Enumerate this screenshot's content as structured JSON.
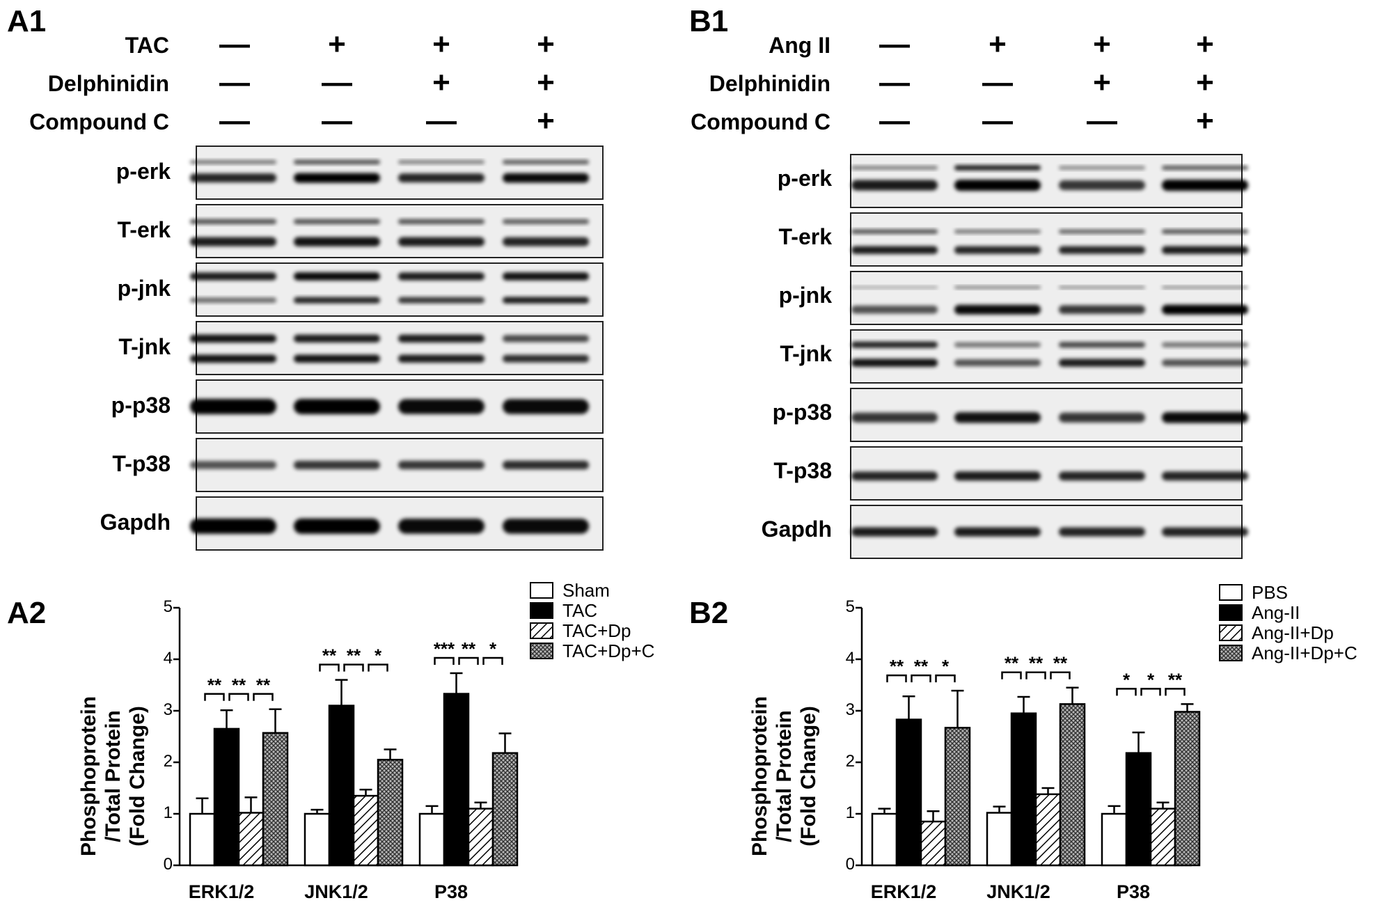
{
  "panels": {
    "A1": "A1",
    "A2": "A2",
    "B1": "B1",
    "B2": "B2"
  },
  "blot_A": {
    "conditions": [
      {
        "name": "TAC",
        "signs": [
          "—",
          "+",
          "+",
          "+"
        ]
      },
      {
        "name": "Delphinidin",
        "signs": [
          "—",
          "—",
          "+",
          "+"
        ]
      },
      {
        "name": "Compound C",
        "signs": [
          "—",
          "—",
          "—",
          "+"
        ]
      }
    ],
    "bands": [
      "p-erk",
      "T-erk",
      "p-jnk",
      "T-jnk",
      "p-p38",
      "T-p38",
      "Gapdh"
    ]
  },
  "blot_B": {
    "conditions": [
      {
        "name": "Ang II",
        "signs": [
          "—",
          "+",
          "+",
          "+"
        ]
      },
      {
        "name": "Delphinidin",
        "signs": [
          "—",
          "—",
          "+",
          "+"
        ]
      },
      {
        "name": "Compound C",
        "signs": [
          "—",
          "—",
          "—",
          "+"
        ]
      }
    ],
    "bands": [
      "p-erk",
      "T-erk",
      "p-jnk",
      "T-jnk",
      "p-p38",
      "T-p38",
      "Gapdh"
    ]
  },
  "chart_data": [
    {
      "type": "bar",
      "panel": "A2",
      "ylabel_lines": [
        "Phosphoprotein",
        "/Total Protein",
        "(Fold Change)"
      ],
      "ylim": [
        0,
        5
      ],
      "yticks": [
        "0",
        "1",
        "2",
        "3",
        "4",
        "5"
      ],
      "categories": [
        "ERK1/2",
        "JNK1/2",
        "P38"
      ],
      "series": [
        {
          "name": "Sham",
          "values": [
            1.0,
            1.0,
            1.0
          ],
          "errors": [
            0.3,
            0.08,
            0.15
          ]
        },
        {
          "name": "TAC",
          "values": [
            2.65,
            3.1,
            3.33
          ],
          "errors": [
            0.36,
            0.5,
            0.4
          ]
        },
        {
          "name": "TAC+Dp",
          "values": [
            1.02,
            1.35,
            1.1
          ],
          "errors": [
            0.3,
            0.12,
            0.12
          ]
        },
        {
          "name": "TAC+Dp+C",
          "values": [
            2.57,
            2.05,
            2.18
          ],
          "errors": [
            0.46,
            0.2,
            0.38
          ]
        }
      ],
      "significance": [
        [
          "**",
          "**",
          "**"
        ],
        [
          "**",
          "**",
          "*"
        ],
        [
          "***",
          "**",
          "*"
        ]
      ],
      "legend_position": "top-right",
      "grid": false
    },
    {
      "type": "bar",
      "panel": "B2",
      "ylabel_lines": [
        "Phosphoprotein",
        "/Total Protein",
        "(Fold Change)"
      ],
      "ylim": [
        0,
        5
      ],
      "yticks": [
        "0",
        "1",
        "2",
        "3",
        "4",
        "5"
      ],
      "categories": [
        "ERK1/2",
        "JNK1/2",
        "P38"
      ],
      "series": [
        {
          "name": "PBS",
          "values": [
            1.0,
            1.02,
            1.0
          ],
          "errors": [
            0.1,
            0.12,
            0.15
          ]
        },
        {
          "name": "Ang-II",
          "values": [
            2.83,
            2.95,
            2.18
          ],
          "errors": [
            0.45,
            0.32,
            0.4
          ]
        },
        {
          "name": "Ang-II+Dp",
          "values": [
            0.85,
            1.38,
            1.1
          ],
          "errors": [
            0.2,
            0.12,
            0.12
          ]
        },
        {
          "name": "Ang-II+Dp+C",
          "values": [
            2.67,
            3.13,
            2.98
          ],
          "errors": [
            0.72,
            0.32,
            0.15
          ]
        }
      ],
      "significance": [
        [
          "**",
          "**",
          "*"
        ],
        [
          "**",
          "**",
          "**"
        ],
        [
          "*",
          "*",
          "**"
        ]
      ],
      "legend_position": "top-right",
      "grid": false
    }
  ]
}
